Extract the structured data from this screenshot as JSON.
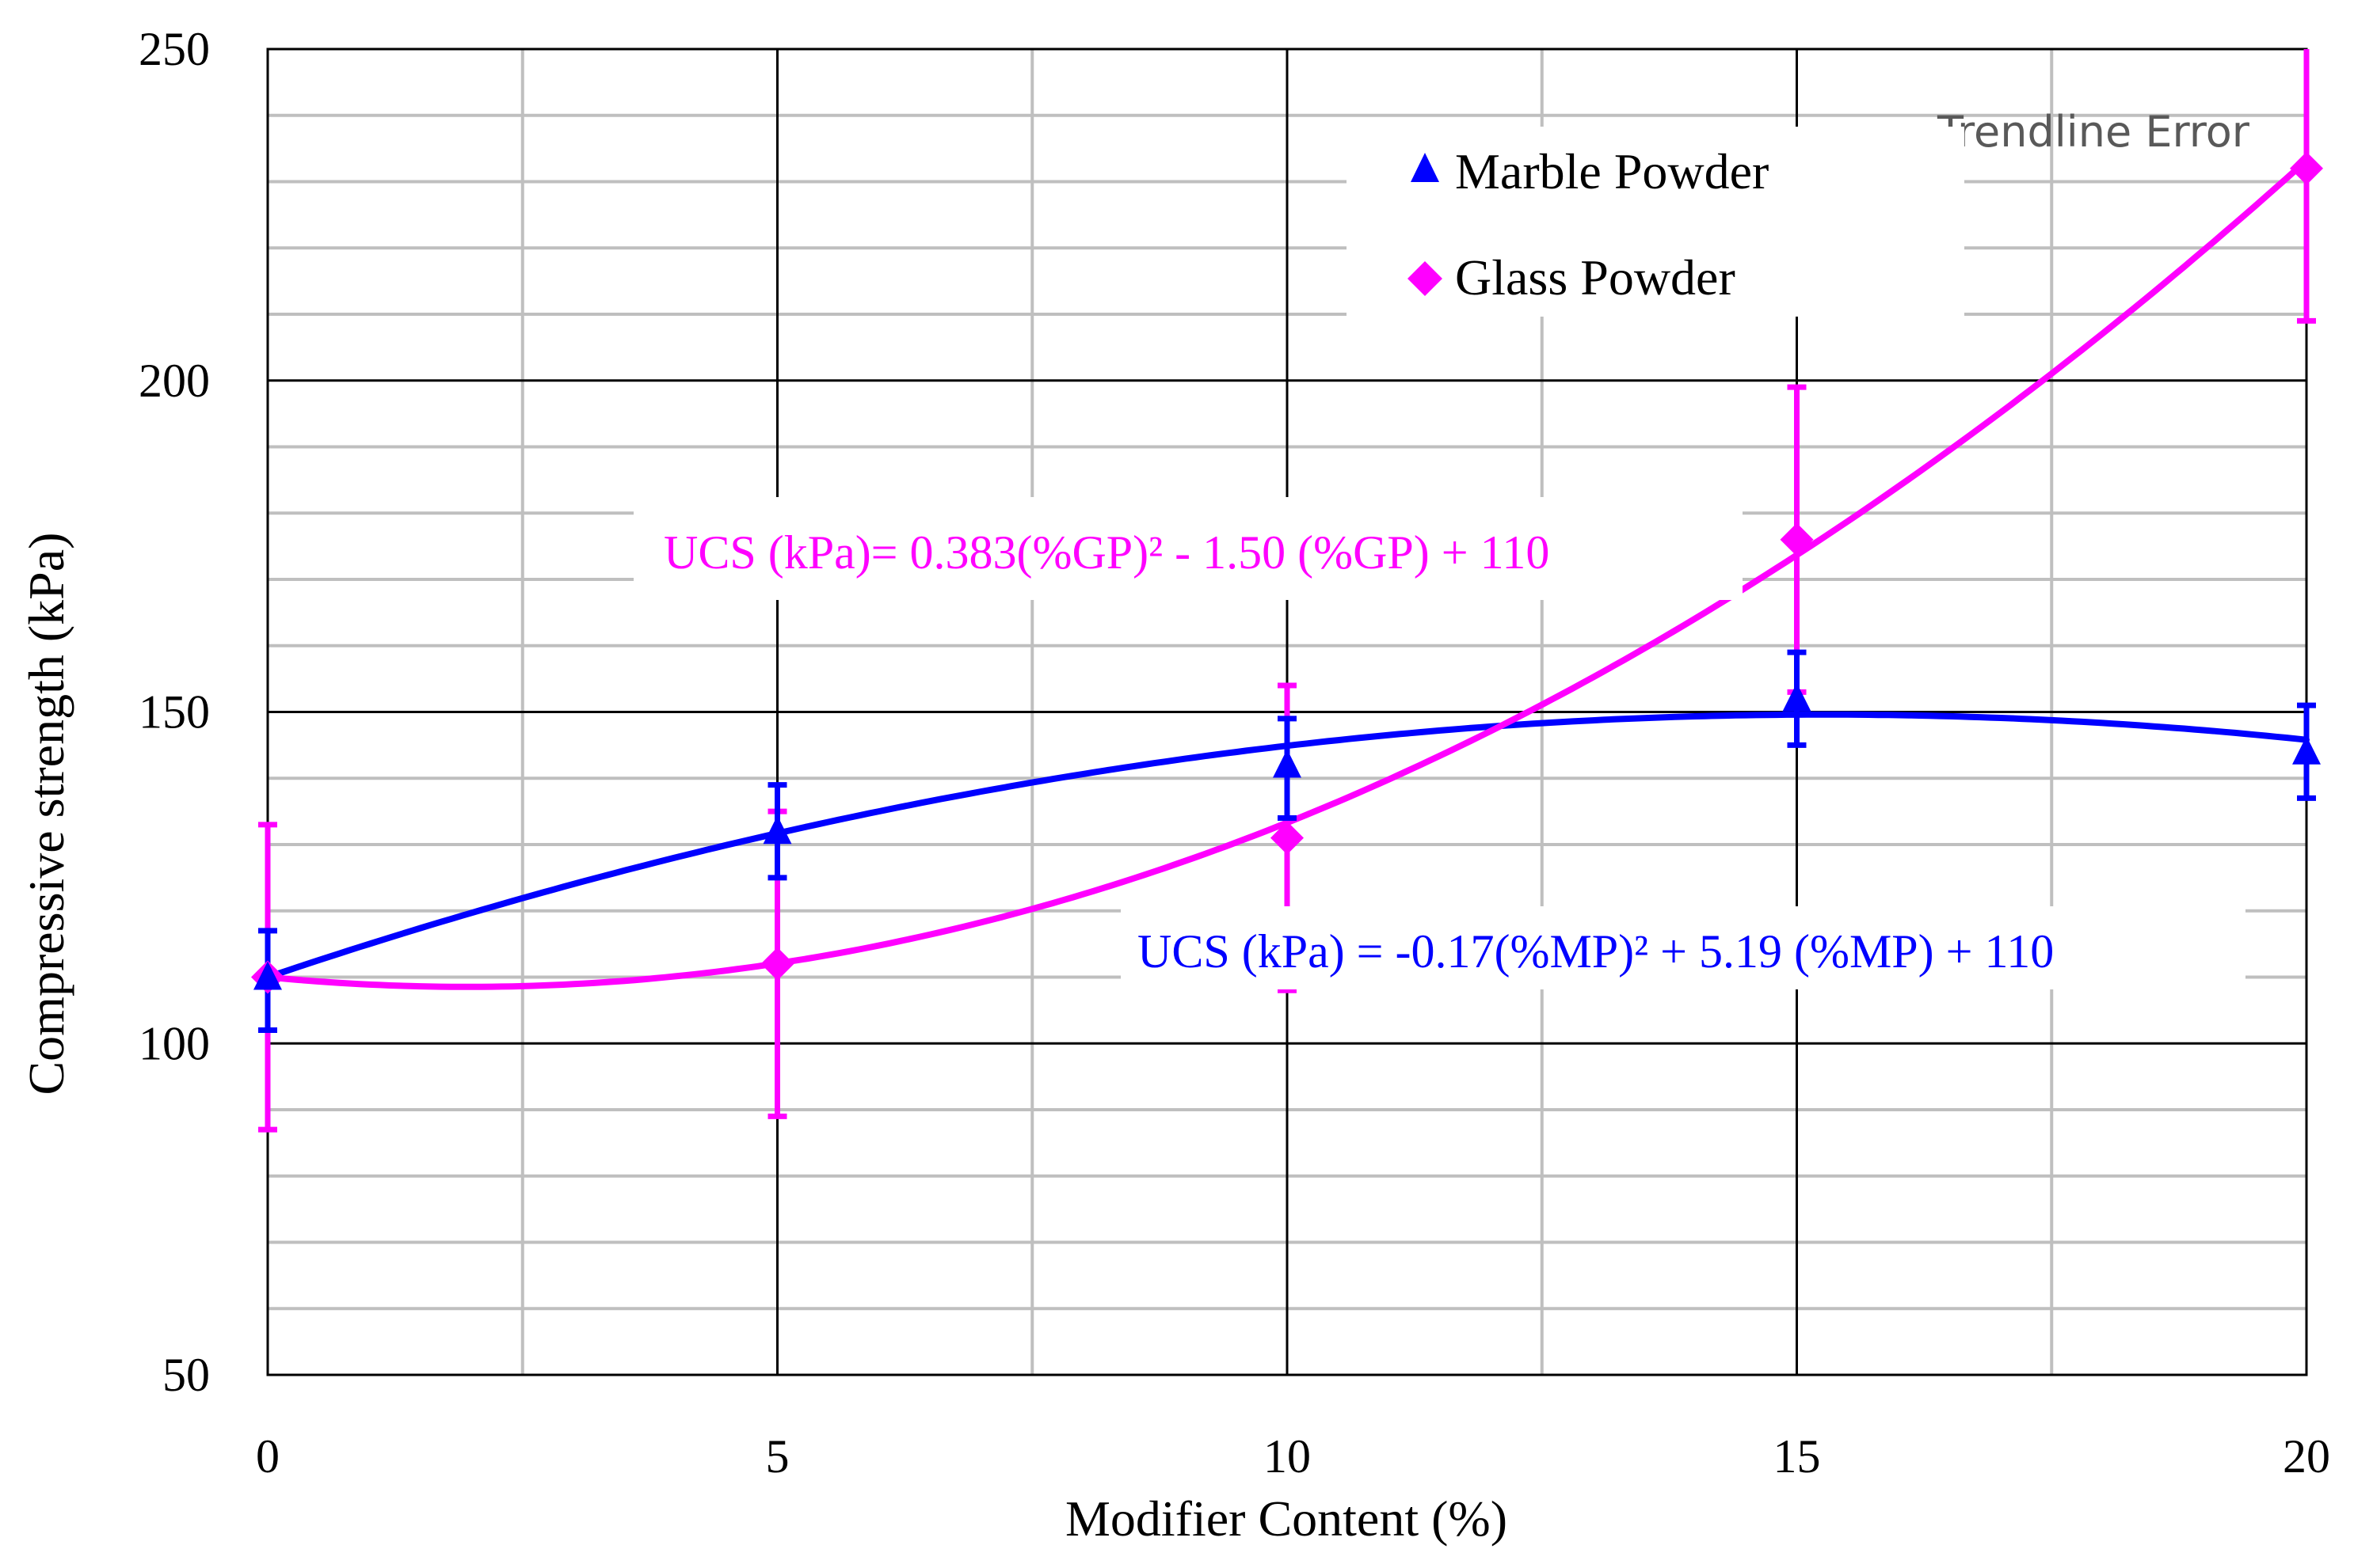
{
  "chart_data": {
    "type": "scatter",
    "xlabel": "Modifier Content (%)",
    "ylabel": "Compressive strength (kPa)",
    "xlim": [
      0,
      20
    ],
    "ylim": [
      50,
      250
    ],
    "x_ticks": [
      0,
      5,
      10,
      15,
      20
    ],
    "y_ticks": [
      50,
      100,
      150,
      200,
      250
    ],
    "x_tick_labels": [
      "0",
      "5",
      "10",
      "15",
      "20"
    ],
    "y_tick_labels": [
      "50",
      "100",
      "150",
      "200",
      "250"
    ],
    "major_grid": true,
    "minor_grid": true,
    "x_minor_step": 2.5,
    "y_minor_step": 10,
    "legend_position": "top-right",
    "overlay_text": "Trendline Error",
    "series": [
      {
        "name": "Marble Powder",
        "marker": "triangle",
        "color": "#0000ff",
        "x": [
          0,
          5,
          10,
          15,
          20
        ],
        "y": [
          110,
          132,
          142,
          152,
          144
        ],
        "err_low": [
          102,
          125,
          134,
          145,
          137
        ],
        "err_high": [
          117,
          139,
          149,
          159,
          151
        ],
        "trendline": {
          "type": "polynomial",
          "a": -0.17,
          "b": 5.19,
          "c": 110
        },
        "equation": "UCS (kPa) = -0.17(%MP)² + 5.19 (%MP) + 110"
      },
      {
        "name": "Glass Powder",
        "marker": "diamond",
        "color": "#ff00ff",
        "x": [
          0,
          5,
          10,
          15,
          20
        ],
        "y": [
          110,
          112,
          131,
          176,
          232
        ],
        "err_low": [
          87,
          89,
          108,
          153,
          209
        ],
        "err_high": [
          133,
          135,
          154,
          199,
          255
        ],
        "trendline": {
          "type": "polynomial",
          "a": 0.383,
          "b": -1.5,
          "c": 110
        },
        "equation": "UCS (kPa)= 0.383(%GP)² - 1.50 (%GP) + 110"
      }
    ]
  }
}
